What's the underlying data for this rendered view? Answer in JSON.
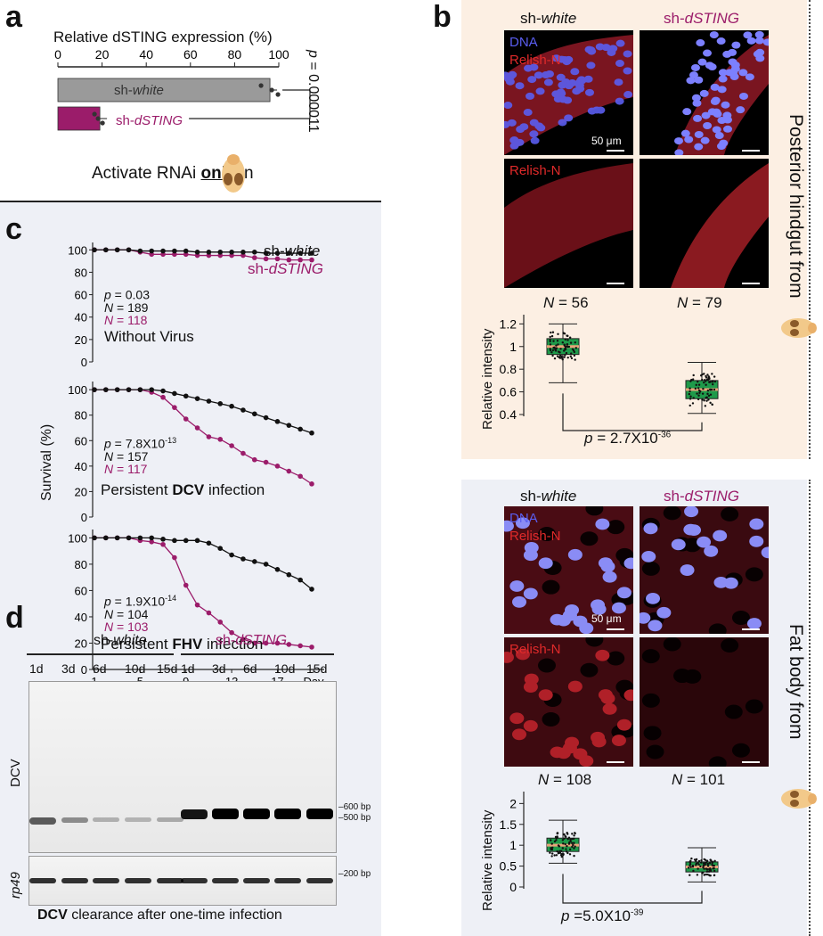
{
  "colors": {
    "purple": "#9b1c6a",
    "grey_bar": "#9a9a9a",
    "green_box": "#1e9a4a",
    "median": "#e8a47a",
    "peach_bg": "#fcefe3",
    "lavender_bg": "#eef0f6",
    "dna_blue": "#5a5ef0",
    "relish_red": "#d62020"
  },
  "panel_labels": {
    "a": "a",
    "b": "b",
    "c": "c",
    "d": "d"
  },
  "panel_a": {
    "title": "Relative dSTING expression (%)",
    "ticks": [
      "0",
      "20",
      "40",
      "60",
      "80",
      "100"
    ],
    "bar1_label": "sh-",
    "bar1_italic": "white",
    "bar2_label": "sh-",
    "bar2_italic": "dSTING",
    "p_prefix": "p",
    "p_value": " = 0.000011",
    "caption_pre": "Activate RNAi ",
    "caption_bold": "only",
    "caption_post": " in",
    "chart_data": {
      "type": "bar",
      "categories": [
        "sh-white",
        "sh-dSTING"
      ],
      "values": [
        96,
        19
      ],
      "xlim": [
        0,
        100
      ]
    }
  },
  "panel_b": {
    "col1_pre": "sh-",
    "col1_italic": "white",
    "col2_pre": "sh-",
    "col2_italic": "dSTING",
    "dna_label": "DNA",
    "relish_label": "Relish-N",
    "scale_label": "50 μm",
    "side_title_top": "Posterior hindgut from",
    "side_title_bottom": "Fat body from",
    "top": {
      "n1_italic": "N",
      "n1_val": " = 56",
      "n2_italic": "N",
      "n2_val": " = 79",
      "ylabel": "Relative intensity",
      "p_italic": "p",
      "p_text": " = 2.7X10",
      "p_exp": "-36",
      "chart_data": {
        "type": "box",
        "categories": [
          "sh-white",
          "sh-dSTING"
        ],
        "yticks": [
          "0.4",
          "0.6",
          "0.8",
          "1",
          "1.2"
        ],
        "ylim": [
          0.4,
          1.25
        ],
        "series": [
          {
            "min": 0.68,
            "q1": 0.93,
            "median": 1.0,
            "q3": 1.07,
            "max": 1.2
          },
          {
            "min": 0.41,
            "q1": 0.54,
            "median": 0.62,
            "q3": 0.7,
            "max": 0.86
          }
        ]
      }
    },
    "bottom": {
      "n1_italic": "N",
      "n1_val": " = 108",
      "n2_italic": "N",
      "n2_val": " = 101",
      "ylabel": "Relative intensity",
      "p_italic": "p",
      "p_text": " =5.0X10",
      "p_exp": "-39",
      "chart_data": {
        "type": "box",
        "categories": [
          "sh-white",
          "sh-dSTING"
        ],
        "yticks": [
          "0",
          "0.5",
          "1",
          "1.5",
          "2"
        ],
        "ylim": [
          0,
          2.2
        ],
        "series": [
          {
            "min": 0.57,
            "q1": 0.85,
            "median": 1.0,
            "q3": 1.17,
            "max": 1.6
          },
          {
            "min": 0.12,
            "q1": 0.36,
            "median": 0.48,
            "q3": 0.6,
            "max": 0.94
          }
        ]
      }
    }
  },
  "panel_c": {
    "ylabel": "Survival (%)",
    "xticks": [
      "1",
      "5",
      "9",
      "13",
      "17",
      "Day"
    ],
    "legend1_pre": "sh-",
    "legend1_italic": "white",
    "legend2_pre": "sh-",
    "legend2_italic": "dSTING",
    "plots": [
      {
        "p_italic": "p",
        "p_text": " = 0.03",
        "p_exp": "",
        "n1_italic": "N",
        "n1_val": " = 189",
        "n2_italic": "N",
        "n2_val": " = 118",
        "title_pre": "Without Virus",
        "title_bold": "",
        "title_post": "",
        "chart_data": {
          "type": "line",
          "x": [
            1,
            2,
            3,
            4,
            5,
            6,
            7,
            8,
            9,
            10,
            11,
            12,
            13,
            14,
            15,
            16,
            17,
            18,
            19,
            20
          ],
          "yticks": [
            "0",
            "20",
            "40",
            "60",
            "80",
            "100"
          ],
          "ylim": [
            0,
            105
          ],
          "series": [
            {
              "name": "sh-white",
              "values": [
                100,
                100,
                100,
                100,
                99,
                99,
                99,
                99,
                99,
                98,
                98,
                98,
                98,
                98,
                98,
                97,
                97,
                97,
                97,
                97
              ]
            },
            {
              "name": "sh-dSTING",
              "values": [
                100,
                100,
                100,
                100,
                98,
                96,
                96,
                96,
                96,
                95,
                95,
                95,
                95,
                95,
                93,
                92,
                92,
                91,
                91,
                91
              ]
            }
          ]
        }
      },
      {
        "p_italic": "p",
        "p_text": " = 7.8X10",
        "p_exp": "-13",
        "n1_italic": "N",
        "n1_val": " = 157",
        "n2_italic": "N",
        "n2_val": " = 117",
        "title_pre": "Persistent ",
        "title_bold": "DCV",
        "title_post": " infection",
        "chart_data": {
          "type": "line",
          "x": [
            1,
            2,
            3,
            4,
            5,
            6,
            7,
            8,
            9,
            10,
            11,
            12,
            13,
            14,
            15,
            16,
            17,
            18,
            19,
            20
          ],
          "yticks": [
            "0",
            "20",
            "40",
            "60",
            "80",
            "100"
          ],
          "ylim": [
            0,
            105
          ],
          "series": [
            {
              "name": "sh-white",
              "values": [
                100,
                100,
                100,
                100,
                100,
                100,
                99,
                97,
                95,
                93,
                91,
                89,
                87,
                84,
                81,
                78,
                75,
                72,
                69,
                66
              ]
            },
            {
              "name": "sh-dSTING",
              "values": [
                100,
                100,
                100,
                100,
                100,
                98,
                94,
                86,
                77,
                70,
                63,
                61,
                56,
                50,
                45,
                43,
                40,
                36,
                32,
                26
              ]
            }
          ]
        }
      },
      {
        "p_italic": "p",
        "p_text": " = 1.9X10",
        "p_exp": "-14",
        "n1_italic": "N",
        "n1_val": " = 104",
        "n2_italic": "N",
        "n2_val": " = 103",
        "title_pre": "Persistent ",
        "title_bold": "FHV",
        "title_post": " infection",
        "chart_data": {
          "type": "line",
          "x": [
            1,
            2,
            3,
            4,
            5,
            6,
            7,
            8,
            9,
            10,
            11,
            12,
            13,
            14,
            15,
            16,
            17,
            18,
            19,
            20
          ],
          "yticks": [
            "0",
            "20",
            "40",
            "60",
            "80",
            "100"
          ],
          "ylim": [
            0,
            105
          ],
          "series": [
            {
              "name": "sh-white",
              "values": [
                100,
                100,
                100,
                100,
                100,
                100,
                99,
                98,
                98,
                98,
                96,
                92,
                87,
                84,
                82,
                80,
                76,
                72,
                68,
                61
              ]
            },
            {
              "name": "sh-dSTING",
              "values": [
                100,
                100,
                100,
                100,
                98,
                97,
                95,
                85,
                64,
                49,
                43,
                36,
                28,
                23,
                20,
                20,
                20,
                19,
                18,
                17
              ]
            }
          ]
        }
      }
    ]
  },
  "panel_d": {
    "group1_pre": "sh-",
    "group1_italic": "white",
    "group2_pre": "sh-",
    "group2_italic": "dSTING",
    "lanes": [
      "1d",
      "3d",
      "6d",
      "10d",
      "15d",
      "1d",
      "3d",
      "6d",
      "10d",
      "15d"
    ],
    "row1_label": "DCV",
    "row2_label": "rp49",
    "marker_600": "600 bp",
    "marker_500": "500 bp",
    "marker_200": "200 bp",
    "caption_bold": "DCV",
    "caption_rest": " clearance after one-time infection",
    "dcv_intensity": [
      0.55,
      0.3,
      0.12,
      0.1,
      0.15,
      0.9,
      1.0,
      1.0,
      1.0,
      1.0
    ],
    "rp49_intensity": [
      0.8,
      0.8,
      0.8,
      0.8,
      0.8,
      0.8,
      0.8,
      0.8,
      0.8,
      0.8
    ]
  }
}
